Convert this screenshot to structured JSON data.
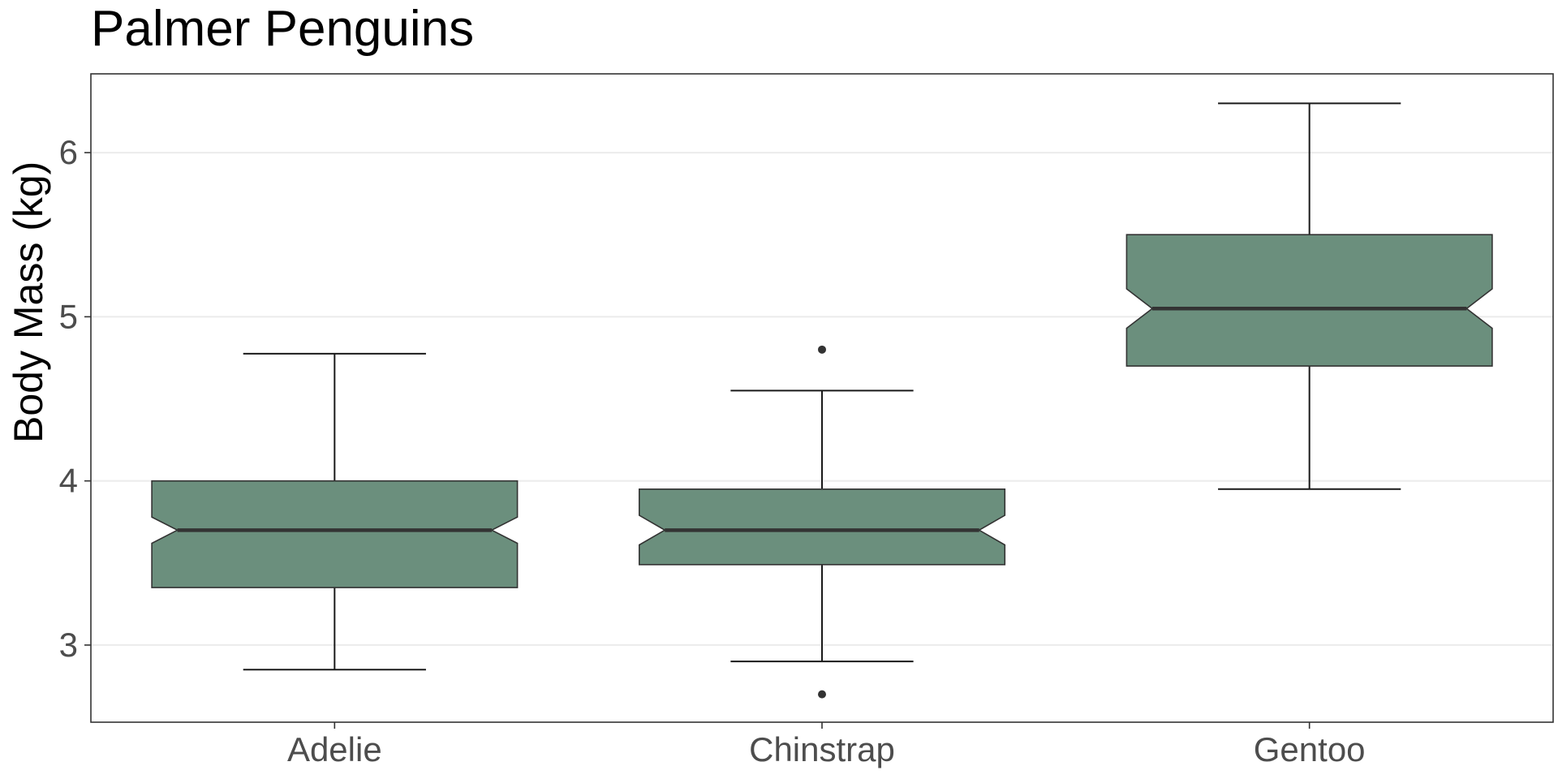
{
  "chart_data": {
    "type": "box",
    "notched": true,
    "title": "Palmer Penguins",
    "xlabel": "",
    "ylabel": "Body Mass (kg)",
    "ylim": [
      2.53,
      6.48
    ],
    "yticks": [
      3,
      4,
      5,
      6
    ],
    "ytick_labels": [
      "3",
      "4",
      "5",
      "6"
    ],
    "grid": "horizontal major lines",
    "legend": "none",
    "categories": [
      "Adelie",
      "Chinstrap",
      "Gentoo"
    ],
    "boxes": [
      {
        "category": "Adelie",
        "whisker_low": 2.85,
        "q1": 3.35,
        "median": 3.7,
        "q3": 4.0,
        "whisker_high": 4.775,
        "notch_low": 3.62,
        "notch_high": 3.78,
        "outliers": []
      },
      {
        "category": "Chinstrap",
        "whisker_low": 2.9,
        "q1": 3.49,
        "median": 3.7,
        "q3": 3.95,
        "whisker_high": 4.55,
        "notch_low": 3.61,
        "notch_high": 3.79,
        "outliers": [
          2.7,
          4.8
        ]
      },
      {
        "category": "Gentoo",
        "whisker_low": 3.95,
        "q1": 4.7,
        "median": 5.05,
        "q3": 5.5,
        "whisker_high": 6.3,
        "notch_low": 4.93,
        "notch_high": 5.17,
        "outliers": []
      }
    ],
    "colors": {
      "box_fill": "#6b8f7d",
      "box_stroke": "#333333",
      "median_line": "#333333",
      "whisker": "#1a1a1a",
      "outlier": "#333333",
      "grid": "#ebebeb",
      "panel_border": "#333333",
      "tick_text": "#4d4d4d",
      "title_text": "#000000"
    }
  }
}
